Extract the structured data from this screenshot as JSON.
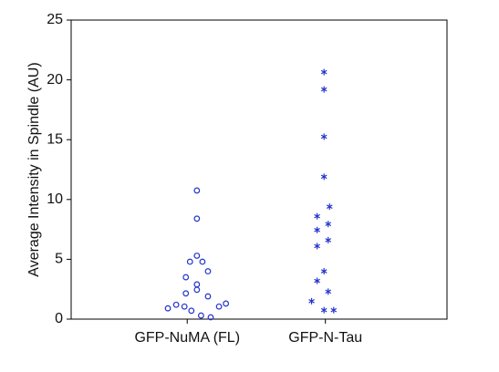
{
  "chart_data": {
    "type": "scatter",
    "y_label": "Average Intensity in Spindle (AU)",
    "xlim": [
      0.16,
      2.88
    ],
    "xticks": [
      {
        "value": 1,
        "label": "GFP-NuMA (FL)"
      },
      {
        "value": 2,
        "label": "GFP-N-Tau"
      }
    ],
    "ylim": [
      0,
      25
    ],
    "yticks": [
      0,
      5,
      10,
      15,
      20,
      25
    ],
    "series": [
      {
        "name": "GFP-NuMA (FL)",
        "color": "#2233cc",
        "marker": "o",
        "x": [
          1.07,
          1.07,
          1.07,
          1.02,
          1.11,
          1.15,
          0.99,
          1.07,
          1.07,
          0.99,
          1.15,
          0.92,
          0.98,
          0.86,
          1.03,
          1.23,
          1.28,
          1.1,
          1.17
        ],
        "values": [
          10.75,
          8.4,
          5.3,
          4.8,
          4.8,
          4.0,
          3.5,
          2.9,
          2.45,
          2.15,
          1.9,
          1.2,
          1.05,
          0.9,
          0.7,
          1.05,
          1.3,
          0.3,
          0.15
        ]
      },
      {
        "name": "GFP-N-Tau",
        "color": "#2233cc",
        "marker": "*",
        "x": [
          1.99,
          1.99,
          1.99,
          1.99,
          2.03,
          1.94,
          2.02,
          1.94,
          2.02,
          1.94,
          1.99,
          1.94,
          2.02,
          1.9,
          1.99,
          2.06
        ],
        "values": [
          20.65,
          19.2,
          15.25,
          11.9,
          9.4,
          8.6,
          7.95,
          7.45,
          6.6,
          6.1,
          4.0,
          3.2,
          2.3,
          1.5,
          0.75,
          0.75
        ]
      }
    ]
  }
}
